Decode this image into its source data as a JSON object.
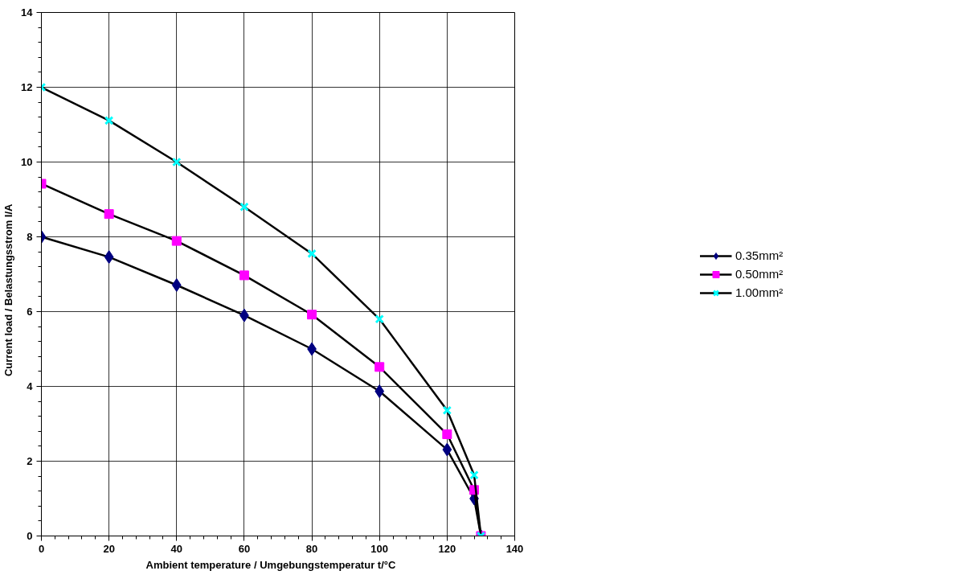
{
  "chart_data": {
    "type": "line",
    "xlabel": "Ambient temperature / Umgebungstemperatur      t/°C",
    "ylabel": "Current load / Belastungsstrom            I/A",
    "x": [
      0,
      20,
      40,
      60,
      80,
      100,
      120,
      128,
      130
    ],
    "series": [
      {
        "name": "0.35mm²",
        "color": "#000080",
        "marker": "diamond",
        "values": [
          8.0,
          7.46,
          6.71,
          5.9,
          5.0,
          3.87,
          2.31,
          1.0,
          0
        ]
      },
      {
        "name": "0.50mm²",
        "color": "#ff00ff",
        "marker": "square",
        "values": [
          9.42,
          8.61,
          7.89,
          6.97,
          5.92,
          4.52,
          2.72,
          1.23,
          0
        ]
      },
      {
        "name": "1.00mm²",
        "color": "#00ffff",
        "marker": "cross",
        "values": [
          12.0,
          11.11,
          10.0,
          8.8,
          7.55,
          5.8,
          3.36,
          1.63,
          0
        ]
      }
    ],
    "xlim": [
      0,
      140
    ],
    "xticks": [
      0,
      20,
      40,
      60,
      80,
      100,
      120,
      140
    ],
    "ylim": [
      0,
      14
    ],
    "yticks": [
      0,
      2,
      4,
      6,
      8,
      10,
      12,
      14
    ],
    "grid": true,
    "legend": "right"
  }
}
